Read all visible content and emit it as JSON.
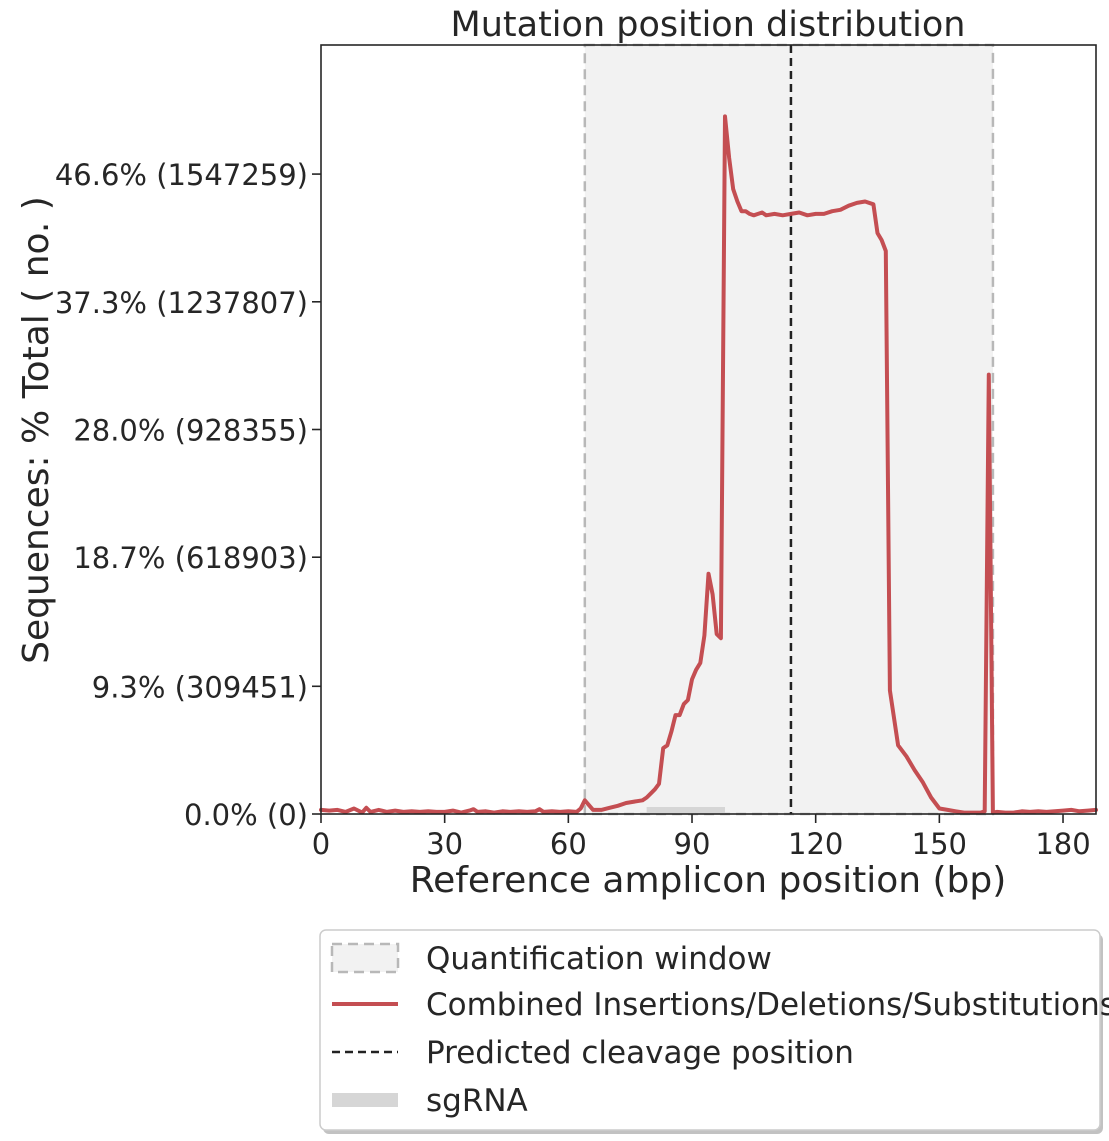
{
  "chart_data": {
    "type": "line",
    "title": "Mutation position distribution",
    "xlabel": "Reference amplicon position (bp)",
    "ylabel": "Sequences: % Total ( no. )",
    "xlim": [
      0,
      188
    ],
    "ylim": [
      0,
      56
    ],
    "xticks": [
      0,
      30,
      60,
      90,
      120,
      150,
      180
    ],
    "xtick_labels": [
      "0",
      "30",
      "60",
      "90",
      "120",
      "150",
      "180"
    ],
    "yticks": [
      0,
      9.3,
      18.7,
      28.0,
      37.3,
      46.6
    ],
    "ytick_labels": [
      "0.0% (0)",
      "9.3% (309451)",
      "18.7% (618903)",
      "28.0% (928355)",
      "37.3% (1237807)",
      "46.6% (1547259)"
    ],
    "quantification_window": [
      64,
      163
    ],
    "cleavage_position": 114,
    "sgrna_range": [
      79,
      98
    ],
    "colors": {
      "line": "#c44e52",
      "window_fill": "#f2f2f2",
      "window_edge": "#b8b8b8",
      "cleavage": "#222222",
      "sgrna": "#d6d6d6"
    },
    "legend": {
      "placement": "below-plot",
      "entries": [
        {
          "label": "Quantification window",
          "kind": "window"
        },
        {
          "label": "Combined Insertions/Deletions/Substitutions",
          "kind": "line"
        },
        {
          "label": "Predicted cleavage position",
          "kind": "cleavage"
        },
        {
          "label": "sgRNA",
          "kind": "sgrna"
        }
      ]
    },
    "series": [
      {
        "name": "Combined Insertions/Deletions/Substitutions",
        "x": [
          0,
          2,
          4,
          6,
          8,
          10,
          11,
          12,
          14,
          16,
          18,
          20,
          22,
          24,
          26,
          28,
          30,
          32,
          34,
          36,
          37,
          38,
          40,
          42,
          44,
          46,
          48,
          50,
          52,
          53,
          54,
          56,
          58,
          60,
          62,
          63,
          64,
          66,
          68,
          70,
          72,
          74,
          76,
          78,
          79,
          80,
          81,
          82,
          83,
          84,
          85,
          86,
          87,
          88,
          89,
          90,
          91,
          92,
          93,
          94,
          95,
          96,
          97,
          98,
          99,
          100,
          101,
          102,
          103,
          104,
          105,
          106,
          107,
          108,
          110,
          112,
          114,
          116,
          118,
          120,
          122,
          124,
          126,
          128,
          130,
          132,
          134,
          135,
          136,
          137,
          138,
          140,
          142,
          144,
          146,
          148,
          150,
          152,
          154,
          156,
          158,
          160,
          161,
          162,
          163,
          164,
          166,
          168,
          170,
          172,
          174,
          176,
          178,
          180,
          182,
          184,
          186,
          188
        ],
        "y": [
          0.3,
          0.25,
          0.3,
          0.15,
          0.4,
          0.1,
          0.45,
          0.15,
          0.3,
          0.15,
          0.25,
          0.15,
          0.2,
          0.15,
          0.2,
          0.15,
          0.15,
          0.25,
          0.1,
          0.25,
          0.35,
          0.15,
          0.2,
          0.1,
          0.2,
          0.15,
          0.2,
          0.15,
          0.2,
          0.35,
          0.15,
          0.2,
          0.15,
          0.2,
          0.15,
          0.4,
          1.0,
          0.3,
          0.3,
          0.45,
          0.6,
          0.8,
          0.9,
          1.0,
          1.2,
          1.5,
          1.8,
          2.2,
          4.8,
          5.0,
          6.0,
          7.2,
          7.2,
          8.0,
          8.3,
          9.8,
          10.5,
          11.0,
          13.0,
          17.5,
          16.0,
          13.1,
          12.8,
          50.8,
          47.8,
          45.5,
          44.6,
          43.9,
          43.9,
          43.7,
          43.6,
          43.7,
          43.8,
          43.6,
          43.7,
          43.6,
          43.7,
          43.8,
          43.6,
          43.7,
          43.7,
          43.9,
          44.0,
          44.3,
          44.5,
          44.6,
          44.4,
          42.3,
          41.8,
          41.0,
          9.0,
          5.0,
          4.2,
          3.2,
          2.3,
          1.2,
          0.4,
          0.3,
          0.2,
          0.1,
          0.1,
          0.1,
          0.2,
          32.0,
          0.1,
          0.15,
          0.1,
          0.1,
          0.2,
          0.15,
          0.2,
          0.15,
          0.2,
          0.25,
          0.3,
          0.2,
          0.25,
          0.3
        ]
      }
    ]
  }
}
